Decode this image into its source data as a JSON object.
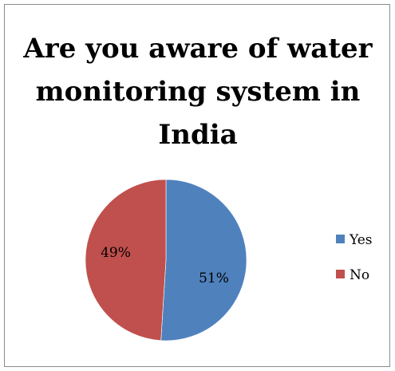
{
  "chart_data": {
    "type": "pie",
    "title": "Are you aware of water monitoring system in India",
    "slices": [
      {
        "label": "Yes",
        "value": 51,
        "value_label": "51%",
        "color": "#4F81BD"
      },
      {
        "label": "No",
        "value": 49,
        "value_label": "49%",
        "color": "#C0504D"
      }
    ],
    "legend_position": "right",
    "start_angle": "12 o'clock, clockwise"
  }
}
